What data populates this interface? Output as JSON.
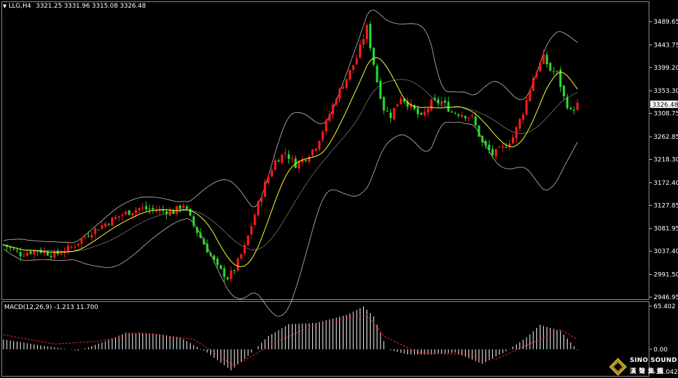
{
  "header": {
    "symbol": "LLG,H4",
    "ohlc": "3321.25 3331.96 3315.08 3326.48"
  },
  "macd": {
    "label": "MACD(12,26,9) -1.213 11.700"
  },
  "price_axis": {
    "ticks": [
      "3489.65",
      "3443.75",
      "3399.20",
      "3353.30",
      "3308.75",
      "3262.85",
      "3218.30",
      "3172.40",
      "3127.85",
      "3081.95",
      "3037.40",
      "2991.50",
      "2946.95"
    ],
    "current": "3326.48"
  },
  "macd_axis": {
    "ticks": [
      "65.402",
      "0.00",
      "-34.042"
    ]
  },
  "colors": {
    "bull": "#ff1a1a",
    "bear": "#2ad82a",
    "ma": "#ffff33",
    "bands": "#bfbfbf",
    "signal": "#ff2020",
    "hist": "#ffffff"
  },
  "logo": {
    "name": "SINO SOUND",
    "cn": "漢聲集團"
  },
  "chart_data": {
    "type": "candlestick",
    "symbol": "LLG",
    "timeframe": "H4",
    "ylim": [
      2946.95,
      3510
    ],
    "indicators": [
      "Bollinger Bands",
      "Moving Average",
      "MACD(12,26,9)"
    ],
    "close_path": [
      [
        0,
        3050
      ],
      [
        5,
        3032
      ],
      [
        10,
        3040
      ],
      [
        15,
        3030
      ],
      [
        20,
        3045
      ],
      [
        25,
        3072
      ],
      [
        30,
        3092
      ],
      [
        35,
        3110
      ],
      [
        40,
        3122
      ],
      [
        45,
        3118
      ],
      [
        50,
        3115
      ],
      [
        53,
        3130
      ],
      [
        56,
        3088
      ],
      [
        60,
        3040
      ],
      [
        63,
        3005
      ],
      [
        66,
        2985
      ],
      [
        68,
        3002
      ],
      [
        71,
        3045
      ],
      [
        74,
        3110
      ],
      [
        77,
        3170
      ],
      [
        80,
        3215
      ],
      [
        83,
        3232
      ],
      [
        86,
        3208
      ],
      [
        89,
        3222
      ],
      [
        92,
        3245
      ],
      [
        95,
        3290
      ],
      [
        98,
        3342
      ],
      [
        101,
        3378
      ],
      [
        104,
        3418
      ],
      [
        107,
        3478
      ],
      [
        108,
        3442
      ],
      [
        110,
        3372
      ],
      [
        112,
        3318
      ],
      [
        114,
        3305
      ],
      [
        117,
        3342
      ],
      [
        120,
        3322
      ],
      [
        123,
        3300
      ],
      [
        126,
        3330
      ],
      [
        129,
        3332
      ],
      [
        132,
        3312
      ],
      [
        135,
        3308
      ],
      [
        138,
        3300
      ],
      [
        141,
        3250
      ],
      [
        144,
        3228
      ],
      [
        147,
        3240
      ],
      [
        150,
        3262
      ],
      [
        153,
        3312
      ],
      [
        156,
        3380
      ],
      [
        159,
        3420
      ],
      [
        161,
        3394
      ],
      [
        163,
        3388
      ],
      [
        165,
        3340
      ],
      [
        167,
        3312
      ],
      [
        169,
        3326
      ]
    ],
    "macd_path": [
      [
        0,
        15
      ],
      [
        12,
        5
      ],
      [
        22,
        -2
      ],
      [
        30,
        12
      ],
      [
        36,
        25
      ],
      [
        44,
        24
      ],
      [
        52,
        18
      ],
      [
        60,
        -5
      ],
      [
        67,
        -32
      ],
      [
        72,
        -10
      ],
      [
        78,
        20
      ],
      [
        84,
        38
      ],
      [
        92,
        40
      ],
      [
        101,
        52
      ],
      [
        106,
        65
      ],
      [
        109,
        50
      ],
      [
        113,
        0
      ],
      [
        119,
        -8
      ],
      [
        126,
        -8
      ],
      [
        133,
        -5
      ],
      [
        141,
        -22
      ],
      [
        148,
        -3
      ],
      [
        154,
        18
      ],
      [
        158,
        37
      ],
      [
        164,
        28
      ],
      [
        169,
        -1
      ]
    ],
    "signal_path": [
      [
        0,
        22
      ],
      [
        15,
        8
      ],
      [
        28,
        12
      ],
      [
        40,
        25
      ],
      [
        56,
        15
      ],
      [
        68,
        -25
      ],
      [
        80,
        10
      ],
      [
        92,
        38
      ],
      [
        107,
        52
      ],
      [
        112,
        20
      ],
      [
        122,
        -5
      ],
      [
        136,
        -8
      ],
      [
        145,
        -15
      ],
      [
        160,
        20
      ],
      [
        164,
        30
      ],
      [
        169,
        15
      ]
    ]
  }
}
